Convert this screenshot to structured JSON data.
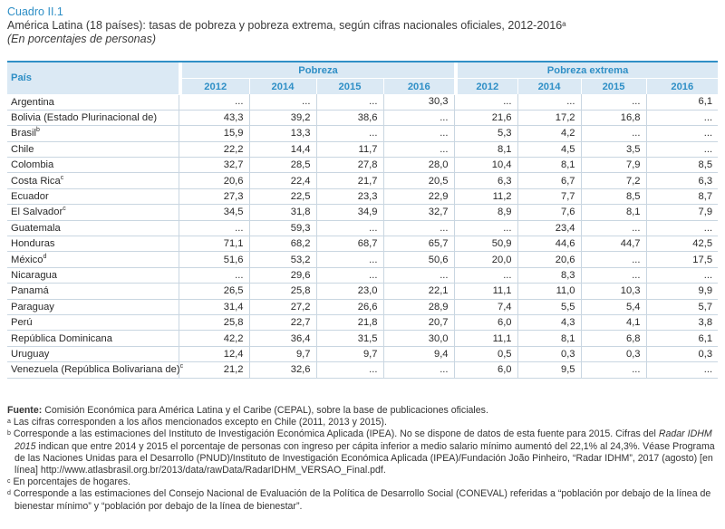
{
  "header": {
    "cuadro": "Cuadro II.1",
    "title": "América Latina (18 países): tasas de pobreza y pobreza extrema, según cifras nacionales oficiales, 2012-2016",
    "title_sup": "a",
    "subtitle": "(En porcentajes de personas)"
  },
  "table": {
    "col_pais": "País",
    "group_pobreza": "Pobreza",
    "group_extrema": "Pobreza extrema",
    "years": [
      "2012",
      "2014",
      "2015",
      "2016",
      "2012",
      "2014",
      "2015",
      "2016"
    ],
    "rows": [
      {
        "name": "Argentina",
        "sup": "",
        "v": [
          "...",
          "...",
          "...",
          "30,3",
          "...",
          "...",
          "...",
          "6,1"
        ]
      },
      {
        "name": "Bolivia (Estado Plurinacional de)",
        "sup": "",
        "v": [
          "43,3",
          "39,2",
          "38,6",
          "...",
          "21,6",
          "17,2",
          "16,8",
          "..."
        ]
      },
      {
        "name": "Brasil",
        "sup": "b",
        "v": [
          "15,9",
          "13,3",
          "...",
          "...",
          "5,3",
          "4,2",
          "...",
          "..."
        ]
      },
      {
        "name": "Chile",
        "sup": "",
        "v": [
          "22,2",
          "14,4",
          "11,7",
          "...",
          "8,1",
          "4,5",
          "3,5",
          "..."
        ]
      },
      {
        "name": "Colombia",
        "sup": "",
        "v": [
          "32,7",
          "28,5",
          "27,8",
          "28,0",
          "10,4",
          "8,1",
          "7,9",
          "8,5"
        ]
      },
      {
        "name": "Costa Rica",
        "sup": "c",
        "v": [
          "20,6",
          "22,4",
          "21,7",
          "20,5",
          "6,3",
          "6,7",
          "7,2",
          "6,3"
        ]
      },
      {
        "name": "Ecuador",
        "sup": "",
        "v": [
          "27,3",
          "22,5",
          "23,3",
          "22,9",
          "11,2",
          "7,7",
          "8,5",
          "8,7"
        ]
      },
      {
        "name": "El Salvador",
        "sup": "c",
        "v": [
          "34,5",
          "31,8",
          "34,9",
          "32,7",
          "8,9",
          "7,6",
          "8,1",
          "7,9"
        ]
      },
      {
        "name": "Guatemala",
        "sup": "",
        "v": [
          "...",
          "59,3",
          "...",
          "...",
          "...",
          "23,4",
          "...",
          "..."
        ]
      },
      {
        "name": "Honduras",
        "sup": "",
        "v": [
          "71,1",
          "68,2",
          "68,7",
          "65,7",
          "50,9",
          "44,6",
          "44,7",
          "42,5"
        ]
      },
      {
        "name": "México",
        "sup": "d",
        "v": [
          "51,6",
          "53,2",
          "...",
          "50,6",
          "20,0",
          "20,6",
          "...",
          "17,5"
        ]
      },
      {
        "name": "Nicaragua",
        "sup": "",
        "v": [
          "...",
          "29,6",
          "...",
          "...",
          "...",
          "8,3",
          "...",
          "..."
        ]
      },
      {
        "name": "Panamá",
        "sup": "",
        "v": [
          "26,5",
          "25,8",
          "23,0",
          "22,1",
          "11,1",
          "11,0",
          "10,3",
          "9,9"
        ]
      },
      {
        "name": "Paraguay",
        "sup": "",
        "v": [
          "31,4",
          "27,2",
          "26,6",
          "28,9",
          "7,4",
          "5,5",
          "5,4",
          "5,7"
        ]
      },
      {
        "name": "Perú",
        "sup": "",
        "v": [
          "25,8",
          "22,7",
          "21,8",
          "20,7",
          "6,0",
          "4,3",
          "4,1",
          "3,8"
        ]
      },
      {
        "name": "República Dominicana",
        "sup": "",
        "v": [
          "42,2",
          "36,4",
          "31,5",
          "30,0",
          "11,1",
          "8,1",
          "6,8",
          "6,1"
        ]
      },
      {
        "name": "Uruguay",
        "sup": "",
        "v": [
          "12,4",
          "9,7",
          "9,7",
          "9,4",
          "0,5",
          "0,3",
          "0,3",
          "0,3"
        ]
      },
      {
        "name": "Venezuela (República Bolivariana de)",
        "sup": "c",
        "v": [
          "21,2",
          "32,6",
          "...",
          "...",
          "6,0",
          "9,5",
          "...",
          "..."
        ]
      }
    ]
  },
  "notes": {
    "fuente_label": "Fuente:",
    "fuente_text": " Comisión Económica para América Latina y el Caribe (CEPAL), sobre la base de publicaciones oficiales.",
    "a": "Las cifras corresponden a los años mencionados excepto en Chile (2011, 2013 y 2015).",
    "b_1": "Corresponde a las estimaciones del Instituto de Investigación Económica Aplicada (IPEA). No se dispone de datos de esta fuente para 2015. Cifras del ",
    "b_italic": "Radar IDHM 2015",
    "b_2": " indican que entre 2014 y 2015 el porcentaje de personas con ingreso per cápita inferior a medio salario mínimo aumentó del 22,1% al 24,3%. Véase Programa de las Naciones Unidas para el Desarrollo (PNUD)/Instituto de Investigación Económica Aplicada (IPEA)/Fundación João Pinheiro, “Radar IDHM”, 2017 (agosto) [en línea] http://www.atlasbrasil.org.br/2013/data/rawData/RadarIDHM_VERSAO_Final.pdf.",
    "c": "En porcentajes de hogares.",
    "d": "Corresponde a las estimaciones del Consejo Nacional de Evaluación de la Política de Desarrollo Social (CONEVAL) referidas a “población por debajo de la línea de bienestar mínimo” y “población por debajo de la línea de bienestar”."
  }
}
